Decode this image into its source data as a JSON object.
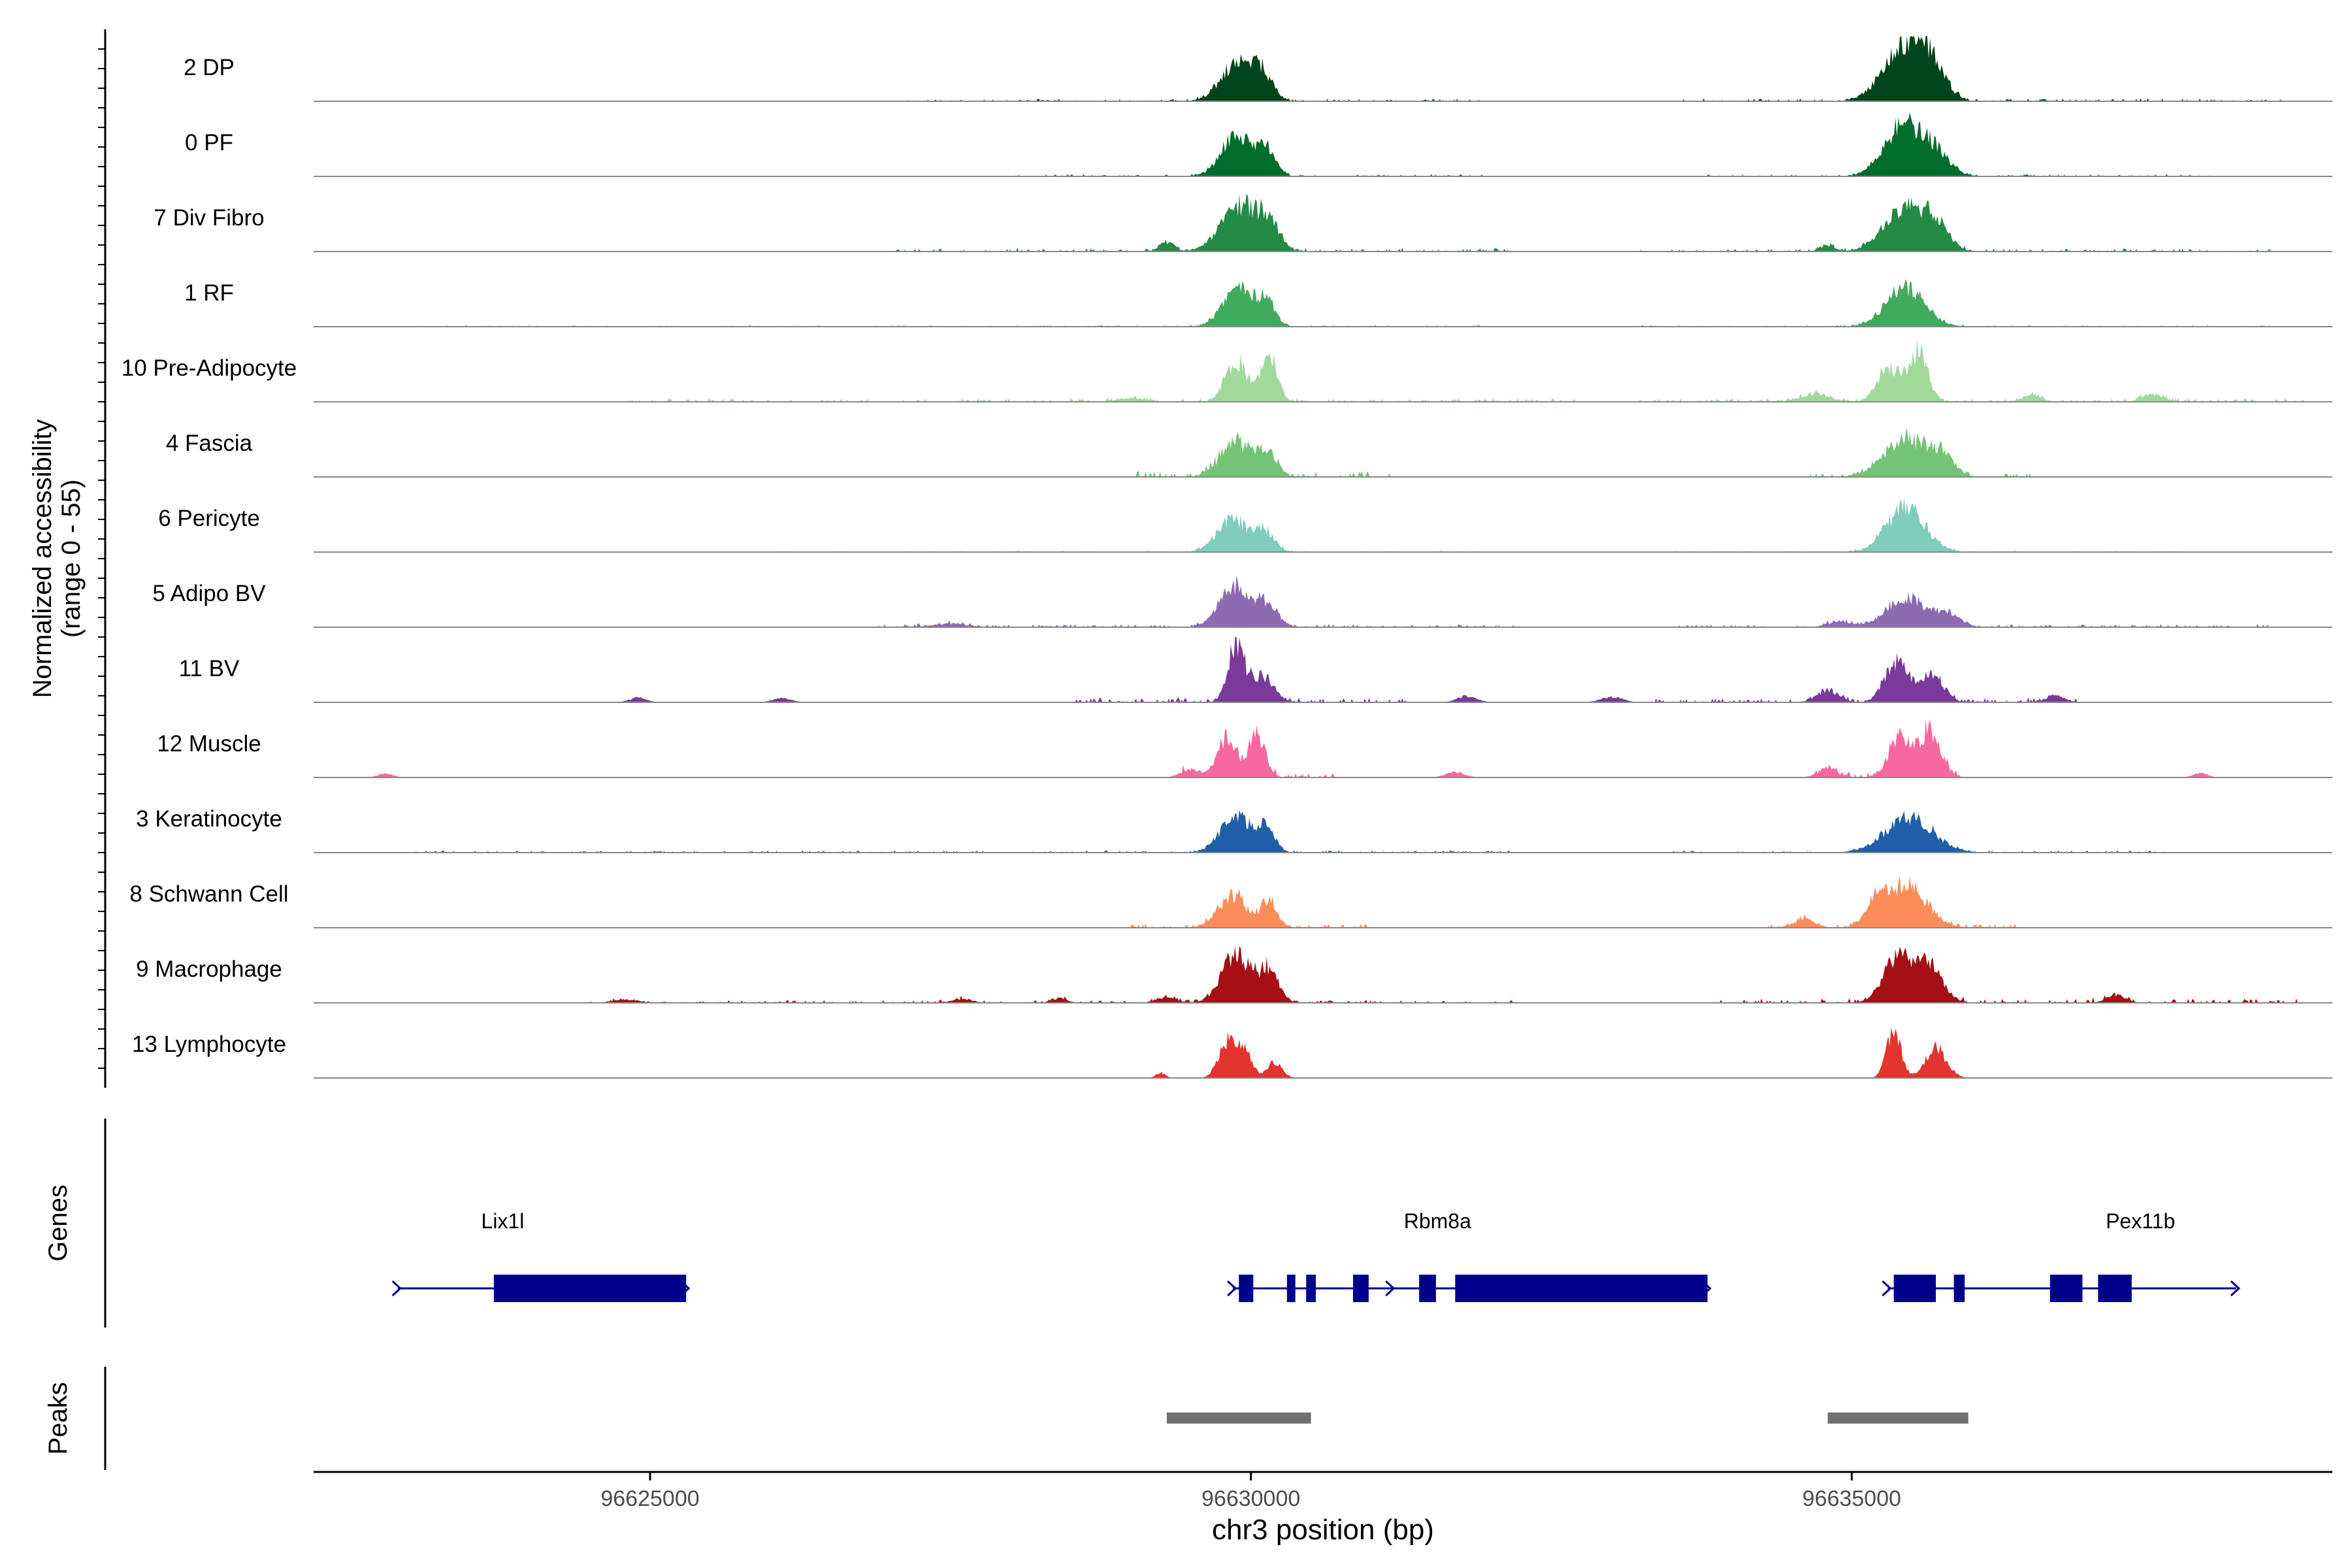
{
  "chart_data": {
    "type": "area",
    "title": "",
    "region_chrom": "chr3",
    "xlim": [
      96622200,
      96639000
    ],
    "ylabel": "Normalized accessibility",
    "ylabel_range": "(range 0 - 55)",
    "ylim": [
      0,
      55
    ],
    "xlabel": "chr3 position (bp)",
    "x_ticks": [
      96625000,
      96630000,
      96635000
    ],
    "x_tick_labels": [
      "96625000",
      "96630000",
      "96635000"
    ],
    "series": [
      {
        "name": "2 DP",
        "color": "#00441B",
        "peaks": [
          [
            96629900,
            0.62,
            140
          ],
          [
            96630100,
            0.32,
            80
          ],
          [
            96635430,
            0.82,
            170
          ],
          [
            96635650,
            0.45,
            120
          ]
        ],
        "noise": [
          [
            96627000,
            96632000,
            0.03
          ],
          [
            96633600,
            96638600,
            0.04
          ]
        ]
      },
      {
        "name": "0 PF",
        "color": "#006D2C",
        "peaks": [
          [
            96629890,
            0.65,
            130
          ],
          [
            96630140,
            0.38,
            70
          ],
          [
            96635430,
            0.78,
            160
          ],
          [
            96635700,
            0.3,
            120
          ]
        ],
        "noise": [
          [
            96628000,
            96632000,
            0.03
          ],
          [
            96633800,
            96638000,
            0.03
          ]
        ]
      },
      {
        "name": "7 Div Fibro",
        "color": "#238B45",
        "peaks": [
          [
            96629900,
            0.7,
            150
          ],
          [
            96630150,
            0.4,
            90
          ],
          [
            96635440,
            0.65,
            170
          ],
          [
            96635700,
            0.35,
            110
          ],
          [
            96629300,
            0.14,
            60
          ],
          [
            96634800,
            0.09,
            60
          ]
        ],
        "noise": [
          [
            96627000,
            96632200,
            0.05
          ],
          [
            96633200,
            96638500,
            0.04
          ]
        ]
      },
      {
        "name": "1 RF",
        "color": "#41AB5D",
        "peaks": [
          [
            96629900,
            0.58,
            130
          ],
          [
            96630130,
            0.34,
            70
          ],
          [
            96635450,
            0.6,
            160
          ]
        ],
        "noise": [
          [
            96623000,
            96632000,
            0.02
          ],
          [
            96633000,
            96638500,
            0.02
          ]
        ]
      },
      {
        "name": "10 Pre-Adipocyte",
        "color": "#A1D99B",
        "peaks": [
          [
            96629880,
            0.62,
            90
          ],
          [
            96630150,
            0.65,
            70
          ],
          [
            96635300,
            0.52,
            90
          ],
          [
            96635550,
            0.78,
            80
          ],
          [
            96629000,
            0.06,
            100
          ],
          [
            96634700,
            0.12,
            120
          ],
          [
            96636500,
            0.1,
            80
          ],
          [
            96637500,
            0.12,
            80
          ]
        ],
        "noise": [
          [
            96624800,
            96632800,
            0.05
          ],
          [
            96633200,
            96638800,
            0.05
          ]
        ]
      },
      {
        "name": "4 Fascia",
        "color": "#74C476",
        "peaks": [
          [
            96629880,
            0.52,
            130
          ],
          [
            96630140,
            0.36,
            80
          ],
          [
            96635450,
            0.58,
            180
          ],
          [
            96635750,
            0.28,
            100
          ]
        ],
        "noise": [
          [
            96629000,
            96631200,
            0.08
          ],
          [
            96634600,
            96636500,
            0.06
          ]
        ]
      },
      {
        "name": "6 Pericyte",
        "color": "#7FCDBB",
        "peaks": [
          [
            96629850,
            0.5,
            130
          ],
          [
            96630120,
            0.3,
            80
          ],
          [
            96635450,
            0.68,
            160
          ]
        ],
        "noise": [
          [
            96626000,
            96632000,
            0.02
          ],
          [
            96633500,
            96637800,
            0.02
          ]
        ]
      },
      {
        "name": "5 Adipo BV",
        "color": "#8C6BB1",
        "peaks": [
          [
            96629880,
            0.65,
            130
          ],
          [
            96630150,
            0.3,
            80
          ],
          [
            96635450,
            0.45,
            160
          ],
          [
            96635800,
            0.2,
            100
          ],
          [
            96627500,
            0.05,
            150
          ],
          [
            96634900,
            0.08,
            100
          ]
        ],
        "noise": [
          [
            96626800,
            96632200,
            0.04
          ],
          [
            96633300,
            96638500,
            0.04
          ]
        ]
      },
      {
        "name": "11 BV",
        "color": "#7A3A9A",
        "peaks": [
          [
            96629880,
            0.85,
            70
          ],
          [
            96630100,
            0.4,
            90
          ],
          [
            96635380,
            0.62,
            100
          ],
          [
            96635680,
            0.4,
            90
          ],
          [
            96634800,
            0.18,
            90
          ],
          [
            96624900,
            0.07,
            70
          ],
          [
            96626100,
            0.06,
            80
          ],
          [
            96631800,
            0.1,
            80
          ],
          [
            96633000,
            0.08,
            90
          ],
          [
            96636700,
            0.1,
            80
          ]
        ],
        "noise": [
          [
            96628500,
            96631300,
            0.07
          ],
          [
            96633300,
            96636900,
            0.06
          ]
        ]
      },
      {
        "name": "12 Muscle",
        "color": "#F768A1",
        "peaks": [
          [
            96629800,
            0.62,
            80
          ],
          [
            96630050,
            0.65,
            70
          ],
          [
            96635400,
            0.62,
            90
          ],
          [
            96635650,
            0.7,
            90
          ],
          [
            96629500,
            0.12,
            80
          ],
          [
            96634800,
            0.14,
            80
          ],
          [
            96622800,
            0.06,
            60
          ],
          [
            96631700,
            0.08,
            80
          ],
          [
            96637900,
            0.07,
            60
          ]
        ],
        "noise": [
          [
            96629300,
            96630700,
            0.07
          ],
          [
            96634700,
            96636000,
            0.07
          ]
        ]
      },
      {
        "name": "3 Keratinocyte",
        "color": "#1F5FAA",
        "peaks": [
          [
            96629880,
            0.55,
            130
          ],
          [
            96630130,
            0.35,
            70
          ],
          [
            96635480,
            0.52,
            200
          ]
        ],
        "noise": [
          [
            96623000,
            96632200,
            0.03
          ],
          [
            96633500,
            96637600,
            0.03
          ]
        ]
      },
      {
        "name": "8 Schwann Cell",
        "color": "#FC8D59",
        "peaks": [
          [
            96629850,
            0.48,
            120
          ],
          [
            96630150,
            0.38,
            70
          ],
          [
            96635450,
            0.65,
            170
          ],
          [
            96635200,
            0.25,
            90
          ],
          [
            96634600,
            0.12,
            90
          ]
        ],
        "noise": [
          [
            96629000,
            96631000,
            0.06
          ],
          [
            96634300,
            96636400,
            0.06
          ]
        ]
      },
      {
        "name": "9 Macrophage",
        "color": "#A50F15",
        "peaks": [
          [
            96629880,
            0.75,
            120
          ],
          [
            96630150,
            0.48,
            80
          ],
          [
            96635380,
            0.68,
            120
          ],
          [
            96635650,
            0.55,
            110
          ],
          [
            96637200,
            0.12,
            80
          ],
          [
            96624800,
            0.05,
            100
          ],
          [
            96627600,
            0.06,
            80
          ],
          [
            96628400,
            0.07,
            60
          ],
          [
            96629300,
            0.08,
            80
          ]
        ],
        "noise": [
          [
            96624500,
            96632200,
            0.04
          ],
          [
            96633900,
            96638700,
            0.06
          ]
        ]
      },
      {
        "name": "13 Lymphocyte",
        "color": "#E3342F",
        "peaks": [
          [
            96629800,
            0.55,
            70
          ],
          [
            96629950,
            0.4,
            60
          ],
          [
            96635350,
            0.7,
            60
          ],
          [
            96635700,
            0.45,
            90
          ],
          [
            96629250,
            0.08,
            40
          ],
          [
            96630200,
            0.25,
            60
          ]
        ],
        "noise": []
      }
    ],
    "genes": [
      {
        "name": "Lix1l",
        "start": 96622900,
        "end": 96625300,
        "strand": "+",
        "exons": [
          [
            96623700,
            96625300
          ]
        ]
      },
      {
        "name": "Rbm8a",
        "start": 96629850,
        "end": 96633800,
        "strand": "+",
        "exons": [
          [
            96629900,
            96630020
          ],
          [
            96630300,
            96630370
          ],
          [
            96630460,
            96630540
          ],
          [
            96630850,
            96630980
          ],
          [
            96631400,
            96631540
          ],
          [
            96631700,
            96633800
          ]
        ]
      },
      {
        "name": "Pex11b",
        "start": 96635300,
        "end": 96638200,
        "strand": "+",
        "exons": [
          [
            96635350,
            96635700
          ],
          [
            96635850,
            96635940
          ],
          [
            96636650,
            96636920
          ],
          [
            96637050,
            96637330
          ]
        ]
      }
    ],
    "peaks": [
      [
        96629300,
        96630500
      ],
      [
        96634800,
        96635970
      ]
    ],
    "track_labels": {
      "genes": "Genes",
      "peaks": "Peaks"
    }
  },
  "colors": {
    "axis": "#000000",
    "baseline": "#888888",
    "gene": "#00008B",
    "peak": "#707070"
  }
}
